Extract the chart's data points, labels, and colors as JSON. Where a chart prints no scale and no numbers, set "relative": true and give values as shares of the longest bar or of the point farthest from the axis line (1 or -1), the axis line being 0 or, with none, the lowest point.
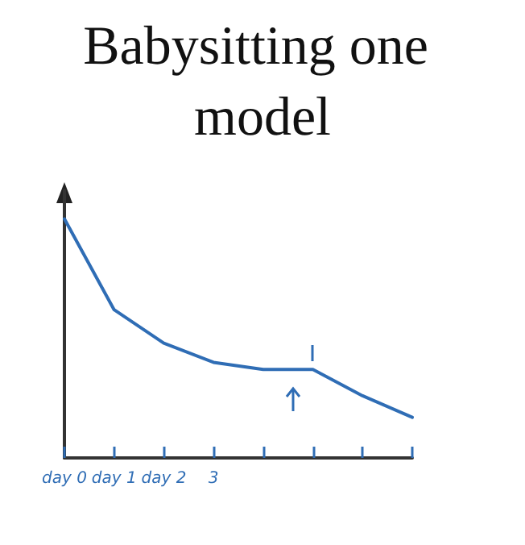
{
  "chart_data": {
    "type": "line",
    "title": "Babysitting one model",
    "relative": true,
    "categories": [
      "day 0",
      "day 1",
      "day 2",
      "3",
      null,
      null,
      null,
      null
    ],
    "series": [
      {
        "color": "#2f6db5",
        "values": [
          1,
          0.62,
          0.48,
          0.4,
          0.37,
          0.37,
          0.26,
          0.17
        ]
      }
    ],
    "grid": false,
    "marker": "none",
    "line_style": "solid"
  }
}
